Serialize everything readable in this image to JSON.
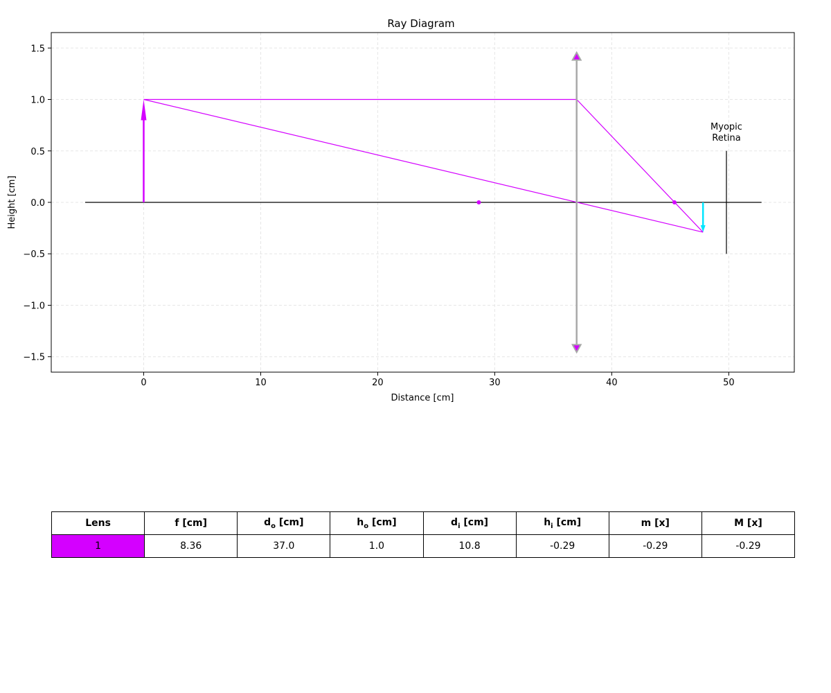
{
  "diagram": {
    "title": "Ray Diagram",
    "xlabel": "Distance [cm]",
    "ylabel": "Height [cm]",
    "xlim": [
      -7.9,
      55.6
    ],
    "ylim": [
      -1.65,
      1.65
    ],
    "xticks": [
      0,
      10,
      20,
      30,
      40,
      50
    ],
    "yticks": [
      1.5,
      1.0,
      0.5,
      0.0,
      -0.5,
      -1.0,
      -1.5
    ],
    "xtick_labels": [
      "0",
      "10",
      "20",
      "30",
      "40",
      "50"
    ],
    "ytick_labels": [
      "1.5",
      "1.0",
      "0.5",
      "0.0",
      "−0.5",
      "−1.0",
      "−1.5"
    ],
    "grid": true,
    "optical_axis": {
      "x_start": -5,
      "x_end": 52.8
    },
    "object": {
      "x": 0,
      "height": 1.0,
      "color": "#d400ff"
    },
    "lens": {
      "x": 37.0,
      "half_height": 1.43,
      "color": "#a8a8a8"
    },
    "focal_points": [
      {
        "x": 28.64,
        "y": 0,
        "color": "#d400ff"
      },
      {
        "x": 45.36,
        "y": 0,
        "color": "#d400ff"
      }
    ],
    "image": {
      "x": 47.8,
      "height": -0.29,
      "color": "#00e5ff"
    },
    "rays": [
      {
        "points": [
          [
            0,
            1.0
          ],
          [
            37.0,
            1.0
          ],
          [
            47.8,
            -0.29
          ]
        ],
        "color": "#d400ff"
      },
      {
        "points": [
          [
            0,
            1.0
          ],
          [
            47.8,
            -0.29
          ]
        ],
        "color": "#d400ff"
      }
    ],
    "retina": {
      "x": 49.8,
      "y_top": 0.5,
      "y_bottom": -0.5,
      "label_line1": "Myopic",
      "label_line2": "Retina"
    }
  },
  "table": {
    "headers": [
      {
        "main": "Lens",
        "sub": "",
        "unit": ""
      },
      {
        "main": "f",
        "sub": "",
        "unit": "[cm]"
      },
      {
        "main": "d",
        "sub": "o",
        "unit": "[cm]"
      },
      {
        "main": "h",
        "sub": "o",
        "unit": "[cm]"
      },
      {
        "main": "d",
        "sub": "i",
        "unit": "[cm]"
      },
      {
        "main": "h",
        "sub": "i",
        "unit": "[cm]"
      },
      {
        "main": "m",
        "sub": "",
        "unit": "[x]"
      },
      {
        "main": "M",
        "sub": "",
        "unit": "[x]"
      }
    ],
    "rows": [
      [
        "1",
        "8.36",
        "37.0",
        "1.0",
        "10.8",
        "-0.29",
        "-0.29",
        "-0.29"
      ]
    ],
    "lens_color": "#d400ff"
  }
}
